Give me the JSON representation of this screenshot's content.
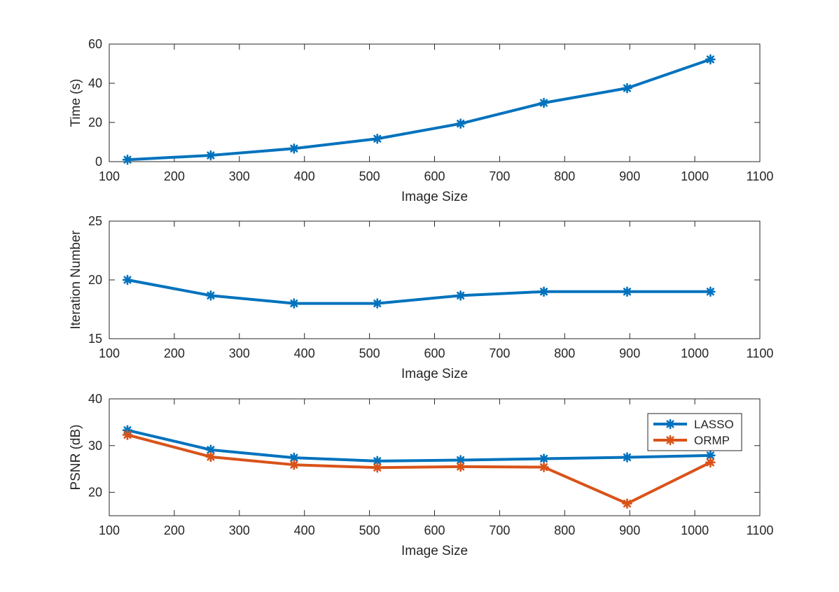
{
  "chart_data": [
    {
      "type": "line",
      "title": "",
      "xlabel": "Image Size",
      "ylabel": "Time (s)",
      "xlim": [
        100,
        1100
      ],
      "ylim": [
        0,
        60
      ],
      "xticks": [
        100,
        200,
        300,
        400,
        500,
        600,
        700,
        800,
        900,
        1000,
        1100
      ],
      "yticks": [
        0,
        20,
        40,
        60
      ],
      "grid": false,
      "legend": null,
      "x": [
        128,
        256,
        384,
        512,
        640,
        768,
        896,
        1024
      ],
      "series": [
        {
          "name": "",
          "color": "#0072BD",
          "values": [
            1.0,
            3.2,
            6.7,
            11.7,
            19.4,
            30.0,
            37.5,
            52.2
          ]
        }
      ]
    },
    {
      "type": "line",
      "title": "",
      "xlabel": "Image Size",
      "ylabel": "Iteration Number",
      "xlim": [
        100,
        1100
      ],
      "ylim": [
        15,
        25
      ],
      "xticks": [
        100,
        200,
        300,
        400,
        500,
        600,
        700,
        800,
        900,
        1000,
        1100
      ],
      "yticks": [
        15,
        20,
        25
      ],
      "grid": false,
      "legend": null,
      "x": [
        128,
        256,
        384,
        512,
        640,
        768,
        896,
        1024
      ],
      "series": [
        {
          "name": "",
          "color": "#0072BD",
          "values": [
            20,
            18.67,
            18,
            18,
            18.67,
            19,
            19,
            19
          ]
        }
      ]
    },
    {
      "type": "line",
      "title": "",
      "xlabel": "Image Size",
      "ylabel": "PSNR (dB)",
      "xlim": [
        100,
        1100
      ],
      "ylim": [
        15,
        40
      ],
      "xticks": [
        100,
        200,
        300,
        400,
        500,
        600,
        700,
        800,
        900,
        1000,
        1100
      ],
      "yticks": [
        20,
        30,
        40
      ],
      "grid": false,
      "legend": "top-right",
      "x": [
        128,
        256,
        384,
        512,
        640,
        768,
        896,
        1024
      ],
      "series": [
        {
          "name": "LASSO",
          "color": "#0072BD",
          "values": [
            33.3,
            29.1,
            27.4,
            26.7,
            26.9,
            27.2,
            27.5,
            27.9
          ]
        },
        {
          "name": "ORMP",
          "color": "#D95319",
          "values": [
            32.3,
            27.6,
            25.9,
            25.3,
            25.5,
            25.4,
            17.6,
            26.4
          ]
        }
      ]
    }
  ]
}
